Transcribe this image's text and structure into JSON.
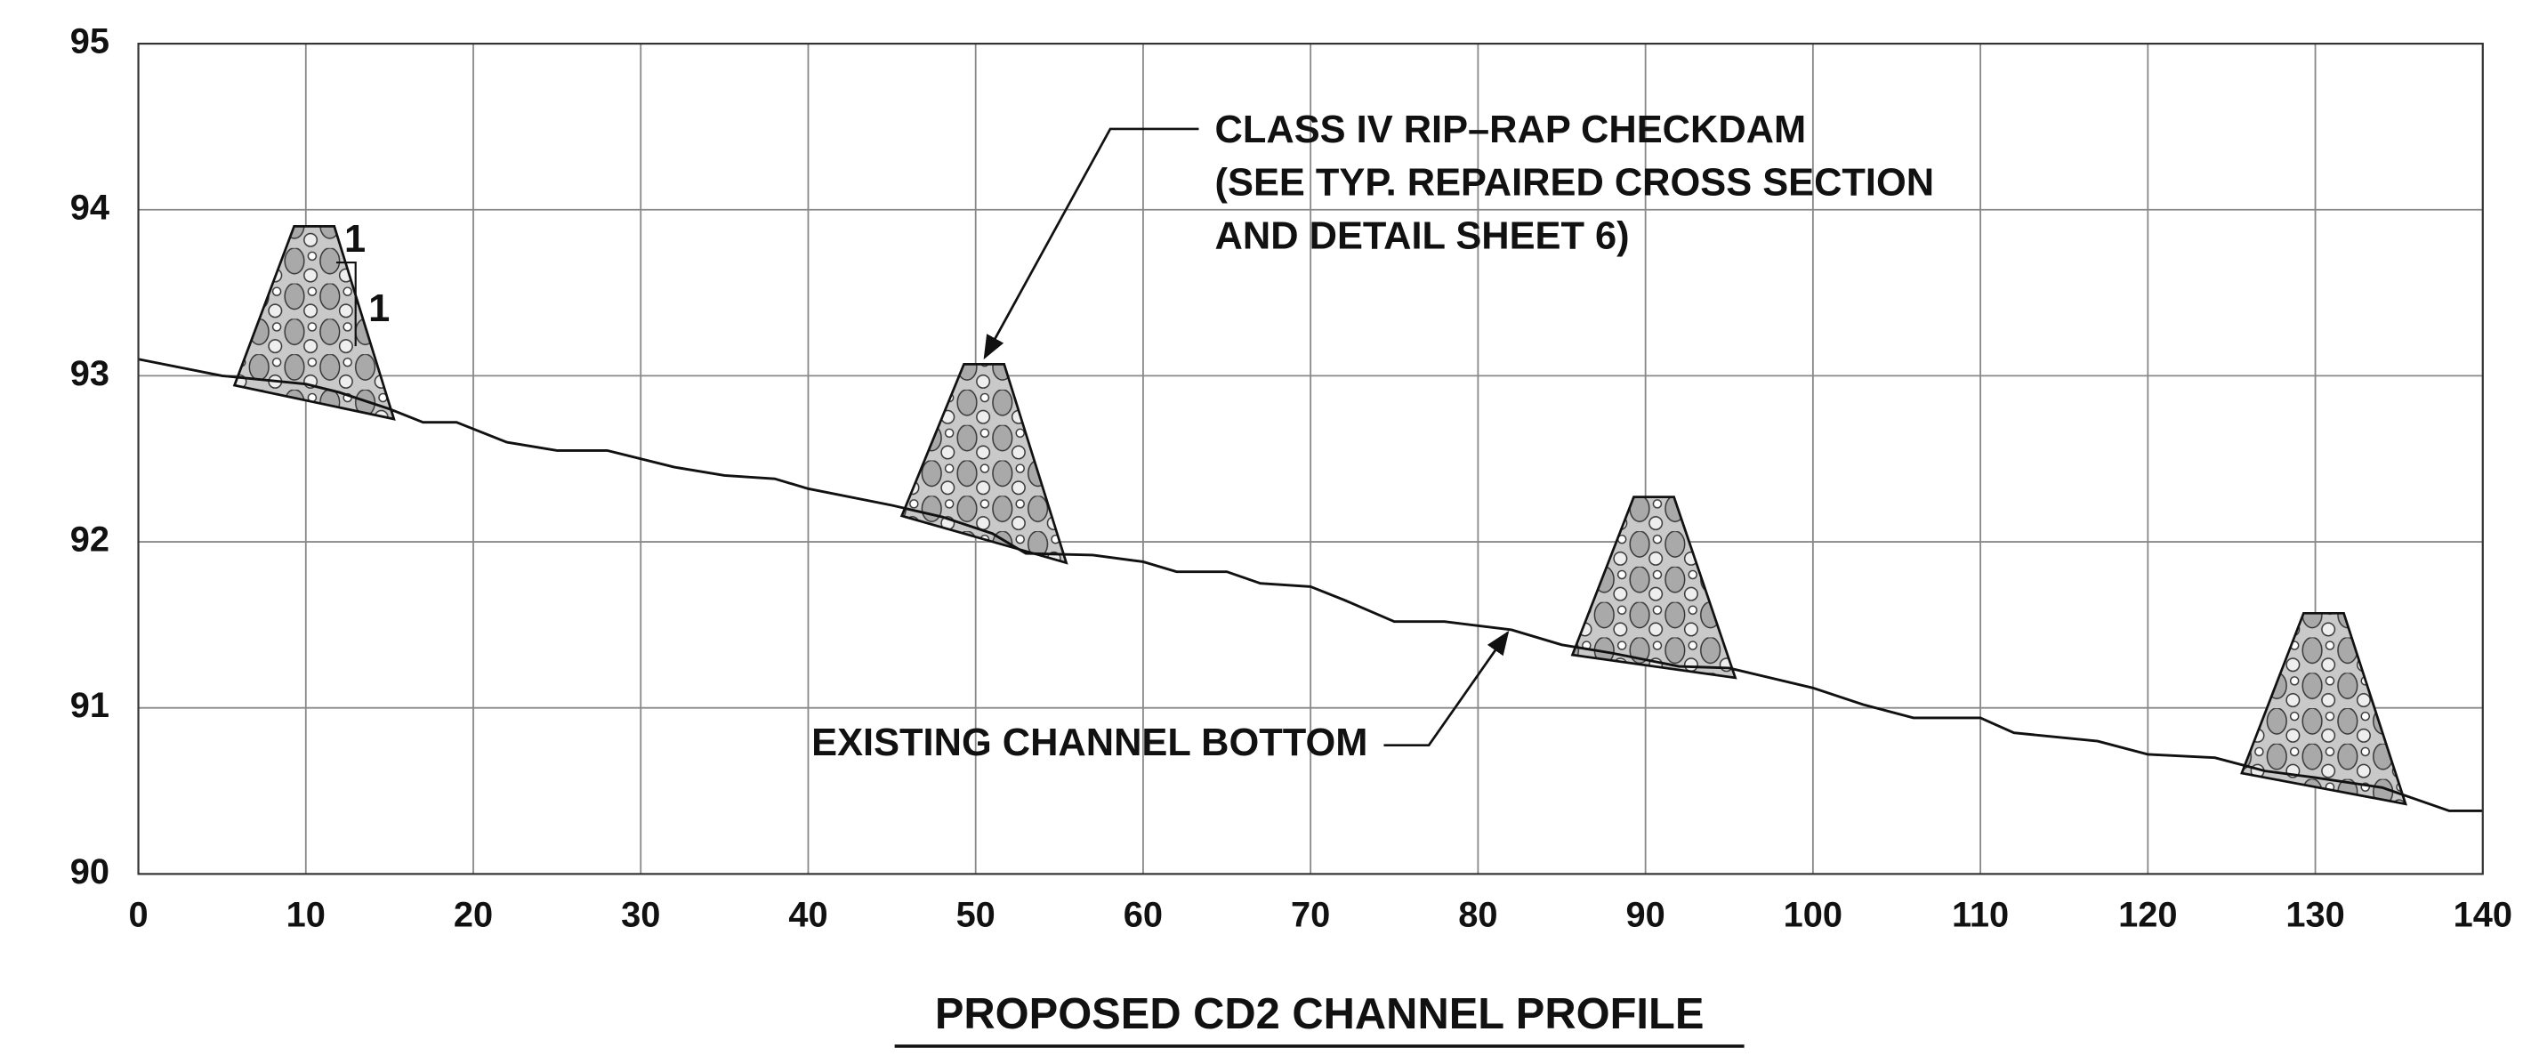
{
  "chart_data": {
    "type": "line",
    "title": "PROPOSED CD2 CHANNEL PROFILE",
    "annotations": [
      "CLASS IV RIP–RAP CHECKDAM",
      "(SEE TYP. REPAIRED CROSS SECTION",
      "AND DETAIL SHEET 6)"
    ],
    "slope_labels": [
      "1",
      "1"
    ],
    "x": [
      0,
      5,
      10,
      12,
      15,
      17,
      19,
      22,
      25,
      28,
      32,
      35,
      38,
      40,
      45,
      48,
      51,
      53,
      57,
      60,
      62,
      65,
      67,
      70,
      72,
      75,
      78,
      82,
      85,
      88,
      92,
      95,
      100,
      103,
      106,
      110,
      112,
      117,
      120,
      124,
      127,
      130,
      134,
      138,
      140
    ],
    "series": [
      {
        "name": "EXISTING CHANNEL BOTTOM",
        "color": "#111111",
        "values": [
          93.1,
          93.0,
          92.95,
          92.9,
          92.8,
          92.72,
          92.72,
          92.6,
          92.55,
          92.55,
          92.45,
          92.4,
          92.38,
          92.32,
          92.22,
          92.15,
          92.05,
          91.93,
          91.92,
          91.88,
          91.82,
          91.82,
          91.75,
          91.73,
          91.65,
          91.52,
          91.52,
          91.47,
          91.38,
          91.33,
          91.25,
          91.24,
          91.12,
          91.02,
          90.94,
          90.94,
          90.85,
          90.8,
          90.72,
          90.7,
          90.62,
          90.58,
          90.52,
          90.38,
          90.38
        ]
      }
    ],
    "checkdams": [
      {
        "x": 10.5,
        "top": 93.9
      },
      {
        "x": 50.5,
        "top": 93.07
      },
      {
        "x": 90.5,
        "top": 92.27
      },
      {
        "x": 130.5,
        "top": 91.57
      }
    ],
    "xlim": [
      0,
      140
    ],
    "xticks": [
      0,
      10,
      20,
      30,
      40,
      50,
      60,
      70,
      80,
      90,
      100,
      110,
      120,
      130,
      140
    ],
    "ylim": [
      90,
      95
    ],
    "yticks": [
      90,
      91,
      92,
      93,
      94,
      95
    ],
    "grid": true
  }
}
